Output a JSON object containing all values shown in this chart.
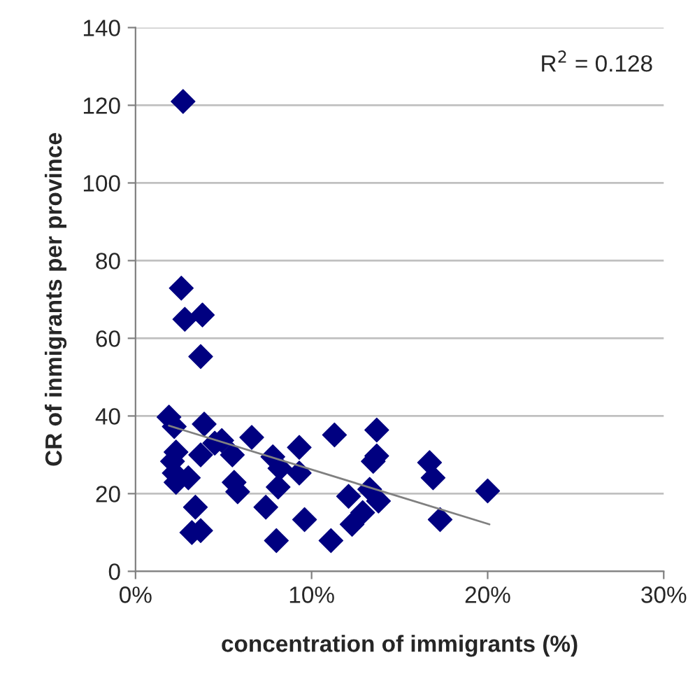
{
  "chart_data": {
    "type": "scatter",
    "xlabel": "concentration of immigrants (%)",
    "ylabel": "CR of inmigrants per province",
    "annotations": [
      "R$^{2}$ = 0.128"
    ],
    "xlim": [
      0,
      30
    ],
    "xticks": [
      {
        "value": 0,
        "label": "0%"
      },
      {
        "value": 10,
        "label": "10%"
      },
      {
        "value": 20,
        "label": "20%"
      },
      {
        "value": 30,
        "label": "30%"
      }
    ],
    "ylim": [
      0,
      140
    ],
    "yticks": [
      0,
      20,
      40,
      60,
      80,
      100,
      120,
      140
    ],
    "grid": "y",
    "legend": false,
    "marker": "diamond",
    "series": [
      {
        "color": "#000080",
        "x": [
          2.7,
          2.6,
          2.8,
          3.8,
          3.7,
          1.9,
          2.2,
          3.9,
          4.9,
          4.5,
          5.5,
          2.3,
          2.1,
          3.7,
          2.2,
          3.0,
          2.3,
          6.6,
          5.6,
          5.8,
          3.4,
          3.2,
          3.7,
          7.4,
          7.8,
          8.2,
          8.1,
          8.0,
          9.3,
          9.3,
          9.6,
          11.3,
          11.1,
          12.1,
          12.3,
          12.9,
          13.3,
          13.7,
          13.7,
          13.5,
          13.8,
          16.7,
          16.9,
          20.0,
          17.3
        ],
        "values": [
          121,
          72.9,
          64.9,
          66,
          55.3,
          39.7,
          37.3,
          37.9,
          33.7,
          33,
          30,
          30.7,
          28.3,
          30,
          25.3,
          24.1,
          22.9,
          34.5,
          22.9,
          20.5,
          16.5,
          10.0,
          10.5,
          16.5,
          29.5,
          26.5,
          21.7,
          7.9,
          31.9,
          25.3,
          13.3,
          35.1,
          7.9,
          19.3,
          12.1,
          15.1,
          21.1,
          36.4,
          29.7,
          28.3,
          18.1,
          28.0,
          24.1,
          20.7,
          13.3
        ]
      },
      {
        "type": "line",
        "color": "#808080",
        "marker": "none",
        "x": [
          1.9,
          20.1
        ],
        "values": [
          37.5,
          12.1
        ]
      }
    ]
  }
}
